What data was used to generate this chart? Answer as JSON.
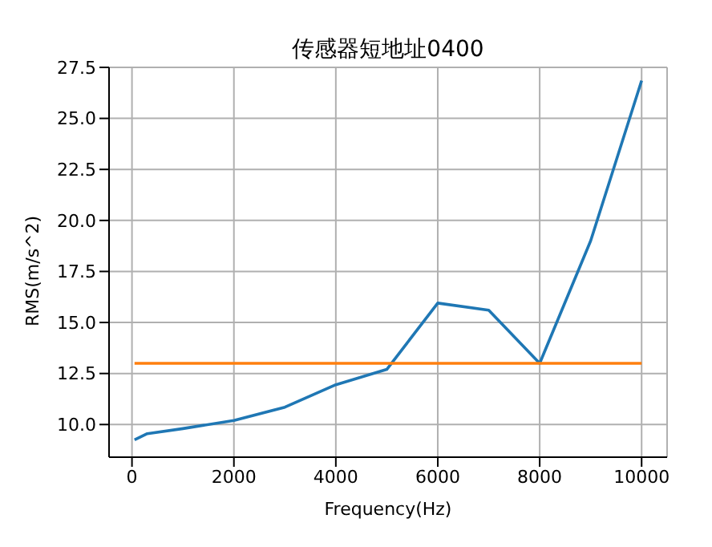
{
  "chart_data": {
    "type": "line",
    "title": "传感器短地址0400",
    "xlabel": "Frequency(Hz)",
    "ylabel": "RMS(m/s^2)",
    "series": [
      {
        "color": "#1f77b4",
        "x": [
          50,
          300,
          1000,
          2000,
          3000,
          4000,
          5000,
          6000,
          7000,
          8000,
          9000,
          10000
        ],
        "values": [
          9.25,
          9.55,
          9.8,
          10.2,
          10.85,
          11.95,
          12.7,
          15.95,
          15.6,
          13.0,
          19.0,
          26.85
        ]
      },
      {
        "color": "#ff7f0e",
        "x": [
          50,
          10000
        ],
        "values": [
          13.0,
          13.0
        ]
      }
    ],
    "xlim": [
      -450,
      10500
    ],
    "xticks": [
      0,
      2000,
      4000,
      6000,
      8000,
      10000
    ],
    "ylim": [
      8.4,
      27.5
    ],
    "yticks": [
      {
        "value": 10,
        "label": "10.0"
      },
      12.5,
      {
        "value": 15,
        "label": "15.0"
      },
      17.5,
      {
        "value": 20,
        "label": "20.0"
      },
      22.5,
      {
        "value": 25,
        "label": "25.0"
      },
      27.5
    ],
    "grid": true
  }
}
